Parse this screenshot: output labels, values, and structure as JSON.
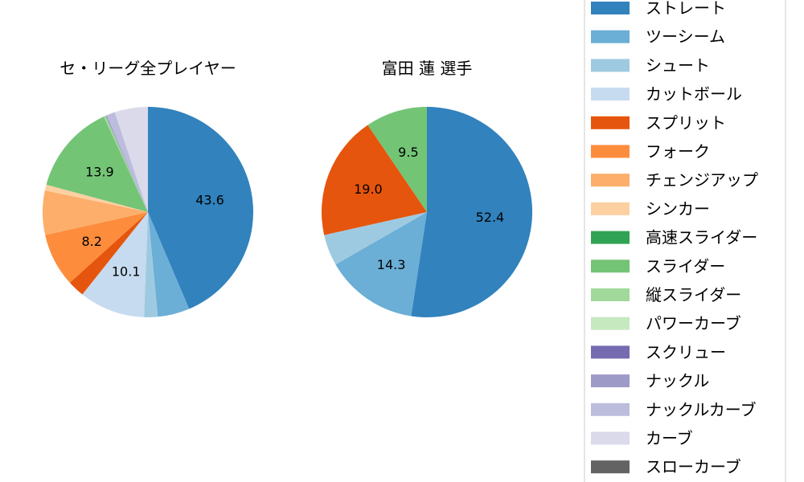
{
  "chart_data": [
    {
      "type": "pie",
      "title": "セ・リーグ全プレイヤー",
      "categories": [
        "ストレート",
        "ツーシーム",
        "シュート",
        "カットボール",
        "スプリット",
        "フォーク",
        "チェンジアップ",
        "シンカー",
        "高速スライダー",
        "スライダー",
        "縦スライダー",
        "パワーカーブ",
        "スクリュー",
        "ナックル",
        "ナックルカーブ",
        "カーブ",
        "スローカーブ"
      ],
      "values": [
        43.6,
        4.9,
        2.1,
        10.1,
        2.6,
        8.2,
        6.8,
        0.9,
        0.0,
        13.9,
        0.3,
        0.0,
        0.0,
        0.2,
        1.3,
        5.1,
        0.0
      ],
      "labels": [
        "43.6",
        "",
        "",
        "10.1",
        "",
        "8.2",
        "",
        "",
        "",
        "13.9",
        "",
        "",
        "",
        "",
        "",
        "",
        ""
      ]
    },
    {
      "type": "pie",
      "title": "富田 蓮  選手",
      "categories": [
        "ストレート",
        "ツーシーム",
        "シュート",
        "カットボール",
        "スプリット",
        "フォーク",
        "チェンジアップ",
        "シンカー",
        "高速スライダー",
        "スライダー",
        "縦スライダー",
        "パワーカーブ",
        "スクリュー",
        "ナックル",
        "ナックルカーブ",
        "カーブ",
        "スローカーブ"
      ],
      "values": [
        52.4,
        14.3,
        4.8,
        0,
        19.0,
        0,
        0,
        0,
        0,
        9.5,
        0,
        0,
        0,
        0,
        0,
        0,
        0
      ],
      "labels": [
        "52.4",
        "14.3",
        "",
        "",
        "19.0",
        "",
        "",
        "",
        "",
        "9.5",
        "",
        "",
        "",
        "",
        "",
        "",
        ""
      ]
    }
  ],
  "legend": {
    "placement": "right",
    "entries": [
      "ストレート",
      "ツーシーム",
      "シュート",
      "カットボール",
      "スプリット",
      "フォーク",
      "チェンジアップ",
      "シンカー",
      "高速スライダー",
      "スライダー",
      "縦スライダー",
      "パワーカーブ",
      "スクリュー",
      "ナックル",
      "ナックルカーブ",
      "カーブ",
      "スローカーブ"
    ]
  },
  "colors": [
    "#3182bd",
    "#6baed6",
    "#9ecae1",
    "#c6dbef",
    "#e6550d",
    "#fd8d3c",
    "#fdae6b",
    "#fdd0a2",
    "#31a354",
    "#74c476",
    "#a1d99b",
    "#c7e9c0",
    "#756bb1",
    "#9e9ac8",
    "#bcbddc",
    "#dadaeb",
    "#636363"
  ]
}
